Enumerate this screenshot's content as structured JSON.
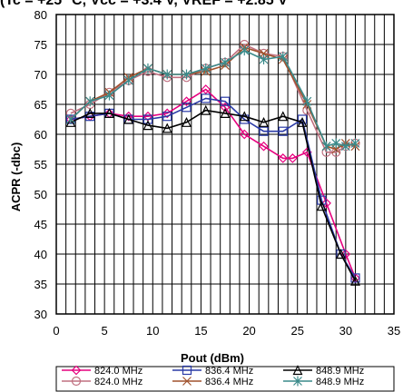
{
  "chart_data": {
    "type": "line",
    "title": "(Tc = +25 °C, Vcc = +3.4 V, VREF = +2.85 V",
    "xlabel": "Pout (dBm)",
    "ylabel": "ACPR (-dbc)",
    "xlim": [
      0,
      35
    ],
    "ylim": [
      30,
      80
    ],
    "xticks": [
      "0",
      "5",
      "10",
      "15",
      "20",
      "25",
      "30",
      "35"
    ],
    "yticks": [
      "30",
      "35",
      "40",
      "45",
      "50",
      "55",
      "60",
      "65",
      "70",
      "75",
      "80"
    ],
    "grid": true,
    "legend_position": "bottom",
    "series": [
      {
        "name": "824.0 MHz",
        "color": "#e6007e",
        "marker": "diamond",
        "x": [
          1.5,
          3.5,
          5.5,
          7.5,
          9.5,
          11.5,
          13.5,
          15.5,
          17.5,
          19.5,
          21.5,
          23.5,
          24.5,
          26,
          28,
          30,
          31
        ],
        "y": [
          62.5,
          63,
          63.5,
          63,
          63,
          63.5,
          65.5,
          67.5,
          64.5,
          60,
          58,
          56,
          56,
          57,
          48.5,
          40,
          36
        ]
      },
      {
        "name": "824.0 MHz",
        "color": "#c07080",
        "marker": "circle",
        "x": [
          1.5,
          3.5,
          5.5,
          7.5,
          9.5,
          11.5,
          13.5,
          15.5,
          17.5,
          19.5,
          21.5,
          23.5,
          26,
          28,
          29,
          30,
          31
        ],
        "y": [
          63.5,
          65,
          67,
          69,
          70.5,
          69.5,
          69.5,
          71,
          72,
          75,
          73.5,
          73,
          64,
          57,
          57,
          58,
          58.5
        ]
      },
      {
        "name": "836.4 MHz",
        "color": "#2a3aa6",
        "marker": "square",
        "x": [
          1.5,
          3.5,
          5.5,
          7.5,
          9.5,
          11.5,
          13.5,
          15.5,
          17.5,
          19.5,
          21.5,
          23.5,
          25.5,
          27.5,
          29.5,
          31
        ],
        "y": [
          62.5,
          63,
          63.5,
          62.5,
          62.5,
          63,
          64.5,
          66,
          65.5,
          62.5,
          60.5,
          60.5,
          62.5,
          49,
          40,
          36
        ]
      },
      {
        "name": "836.4 MHz",
        "color": "#a0522d",
        "marker": "x",
        "x": [
          1.5,
          3.5,
          5.5,
          7.5,
          9.5,
          11.5,
          13.5,
          15.5,
          17.5,
          19.5,
          21.5,
          23.5,
          26,
          28,
          29,
          30,
          31
        ],
        "y": [
          62.5,
          65.5,
          67,
          69.5,
          71,
          70,
          70,
          70.5,
          71.5,
          74.5,
          73.5,
          72.5,
          65,
          58,
          57.5,
          58.5,
          58
        ]
      },
      {
        "name": "848.9 MHz",
        "color": "#000000",
        "marker": "triangle",
        "x": [
          1.5,
          3.5,
          5.5,
          7.5,
          9.5,
          11.5,
          13.5,
          15.5,
          17.5,
          19.5,
          21.5,
          23.5,
          25.5,
          27.5,
          29.5,
          31
        ],
        "y": [
          62,
          63.5,
          63.5,
          62.5,
          61.5,
          61,
          62,
          64,
          63.5,
          63,
          62,
          63,
          62,
          48,
          40,
          35.5
        ]
      },
      {
        "name": "848.9 MHz",
        "color": "#3a8a8a",
        "marker": "asterisk",
        "x": [
          1.5,
          3.5,
          5.5,
          7.5,
          9.5,
          11.5,
          13.5,
          15.5,
          17.5,
          19.5,
          21.5,
          23.5,
          26,
          28,
          29,
          30,
          31
        ],
        "y": [
          62.5,
          65.5,
          66.5,
          69,
          71,
          70,
          70,
          71,
          72,
          74,
          72.5,
          73,
          65.5,
          58,
          58.5,
          58,
          58.5
        ]
      }
    ]
  }
}
